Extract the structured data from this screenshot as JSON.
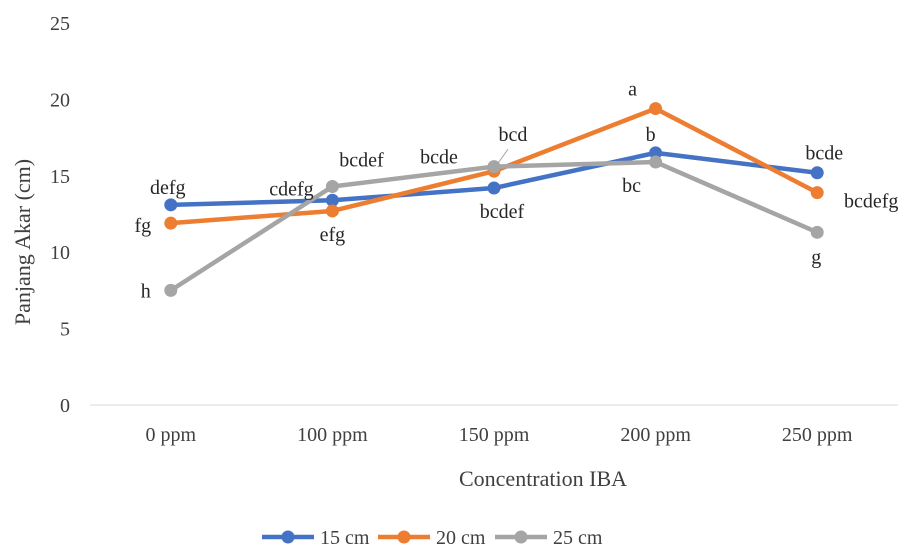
{
  "chart_data": {
    "type": "line",
    "title": "",
    "xlabel": "Concentration IBA",
    "ylabel": "Panjang Akar (cm)",
    "categories": [
      "0 ppm",
      "100 ppm",
      "150 ppm",
      "200 ppm",
      "250 ppm"
    ],
    "ylim": [
      0,
      25
    ],
    "yticks": [
      "0",
      "5",
      "10",
      "15",
      "20",
      "25"
    ],
    "grid": false,
    "legend_position": "bottom",
    "series": [
      {
        "name": "15 cm",
        "color": "#4472C4",
        "values": [
          13.1,
          13.4,
          14.2,
          16.5,
          15.2
        ],
        "labels": [
          "defg",
          "",
          "bcdef",
          "b",
          "bcde"
        ]
      },
      {
        "name": "20 cm",
        "color": "#ED7D31",
        "values": [
          11.9,
          12.7,
          15.3,
          19.4,
          13.9
        ],
        "labels": [
          "fg",
          "efg",
          "bcd",
          "a",
          "bcdefg"
        ]
      },
      {
        "name": "25 cm",
        "color": "#A5A5A5",
        "values": [
          7.5,
          14.3,
          15.6,
          15.9,
          11.3
        ],
        "labels": [
          "h",
          "cdefg",
          "bcde",
          "bc",
          "g"
        ]
      }
    ],
    "extra_annotations": [
      {
        "text": "bcdef",
        "series": "25 cm",
        "category": "100 ppm"
      }
    ]
  }
}
